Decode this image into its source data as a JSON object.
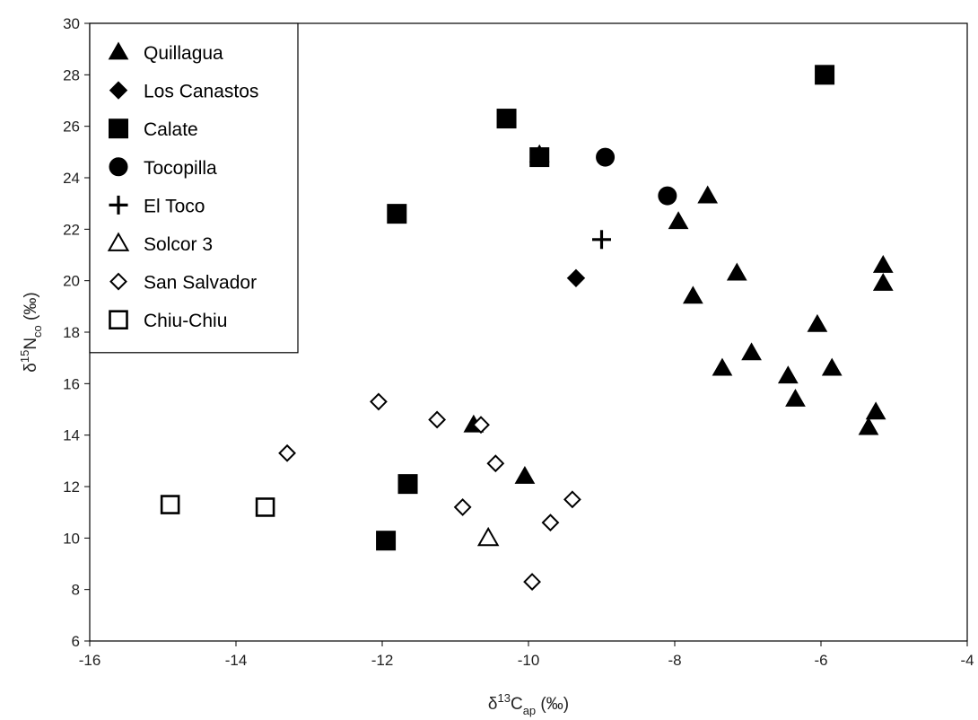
{
  "chart_data": {
    "type": "scatter",
    "title": "",
    "x_axis": {
      "label_main": "δ",
      "label_sup": "13",
      "label_rest": "C",
      "label_sub": "ap",
      "label_unit": " (‰)",
      "range": [
        -16,
        -4
      ],
      "ticks": [
        -16,
        -14,
        -12,
        -10,
        -8,
        -6,
        -4
      ]
    },
    "y_axis": {
      "label_main": "δ",
      "label_sup": "15",
      "label_rest": "N",
      "label_sub": "co",
      "label_unit": " (‰)",
      "range": [
        6,
        30
      ],
      "ticks": [
        6,
        8,
        10,
        12,
        14,
        16,
        18,
        20,
        22,
        24,
        26,
        28,
        30
      ]
    },
    "grid": false,
    "legend_position": "top-left",
    "series": [
      {
        "name": "Quillagua",
        "marker": "triangle-filled",
        "points": [
          {
            "x": -9.85,
            "y": 24.9
          },
          {
            "x": -7.55,
            "y": 23.3
          },
          {
            "x": -7.95,
            "y": 22.3
          },
          {
            "x": -7.15,
            "y": 20.3
          },
          {
            "x": -7.75,
            "y": 19.4
          },
          {
            "x": -5.15,
            "y": 20.6
          },
          {
            "x": -5.15,
            "y": 19.9
          },
          {
            "x": -6.05,
            "y": 18.3
          },
          {
            "x": -6.95,
            "y": 17.2
          },
          {
            "x": -7.35,
            "y": 16.6
          },
          {
            "x": -6.45,
            "y": 16.3
          },
          {
            "x": -5.85,
            "y": 16.6
          },
          {
            "x": -6.35,
            "y": 15.4
          },
          {
            "x": -5.25,
            "y": 14.9
          },
          {
            "x": -5.35,
            "y": 14.3
          },
          {
            "x": -10.75,
            "y": 14.4
          },
          {
            "x": -10.05,
            "y": 12.4
          }
        ]
      },
      {
        "name": "Los Canastos",
        "marker": "diamond-filled",
        "points": [
          {
            "x": -9.35,
            "y": 20.1
          }
        ]
      },
      {
        "name": "Calate",
        "marker": "square-filled",
        "points": [
          {
            "x": -10.3,
            "y": 26.3
          },
          {
            "x": -9.85,
            "y": 24.8
          },
          {
            "x": -11.8,
            "y": 22.6
          },
          {
            "x": -5.95,
            "y": 28.0
          },
          {
            "x": -11.65,
            "y": 12.1
          },
          {
            "x": -11.95,
            "y": 9.9
          }
        ]
      },
      {
        "name": "Tocopilla",
        "marker": "circle-filled",
        "points": [
          {
            "x": -8.95,
            "y": 24.8
          },
          {
            "x": -8.1,
            "y": 23.3
          }
        ]
      },
      {
        "name": "El Toco",
        "marker": "plus",
        "points": [
          {
            "x": -9.0,
            "y": 21.6
          }
        ]
      },
      {
        "name": "Solcor 3",
        "marker": "triangle-open",
        "points": [
          {
            "x": -10.55,
            "y": 10.0
          }
        ]
      },
      {
        "name": "San Salvador",
        "marker": "diamond-open",
        "points": [
          {
            "x": -12.05,
            "y": 15.3
          },
          {
            "x": -11.25,
            "y": 14.6
          },
          {
            "x": -10.65,
            "y": 14.4
          },
          {
            "x": -13.3,
            "y": 13.3
          },
          {
            "x": -10.45,
            "y": 12.9
          },
          {
            "x": -9.4,
            "y": 11.5
          },
          {
            "x": -10.9,
            "y": 11.2
          },
          {
            "x": -9.7,
            "y": 10.6
          },
          {
            "x": -9.95,
            "y": 8.3
          }
        ]
      },
      {
        "name": "Chiu-Chiu",
        "marker": "square-open",
        "points": [
          {
            "x": -14.9,
            "y": 11.3
          },
          {
            "x": -13.6,
            "y": 11.2
          }
        ]
      }
    ]
  }
}
